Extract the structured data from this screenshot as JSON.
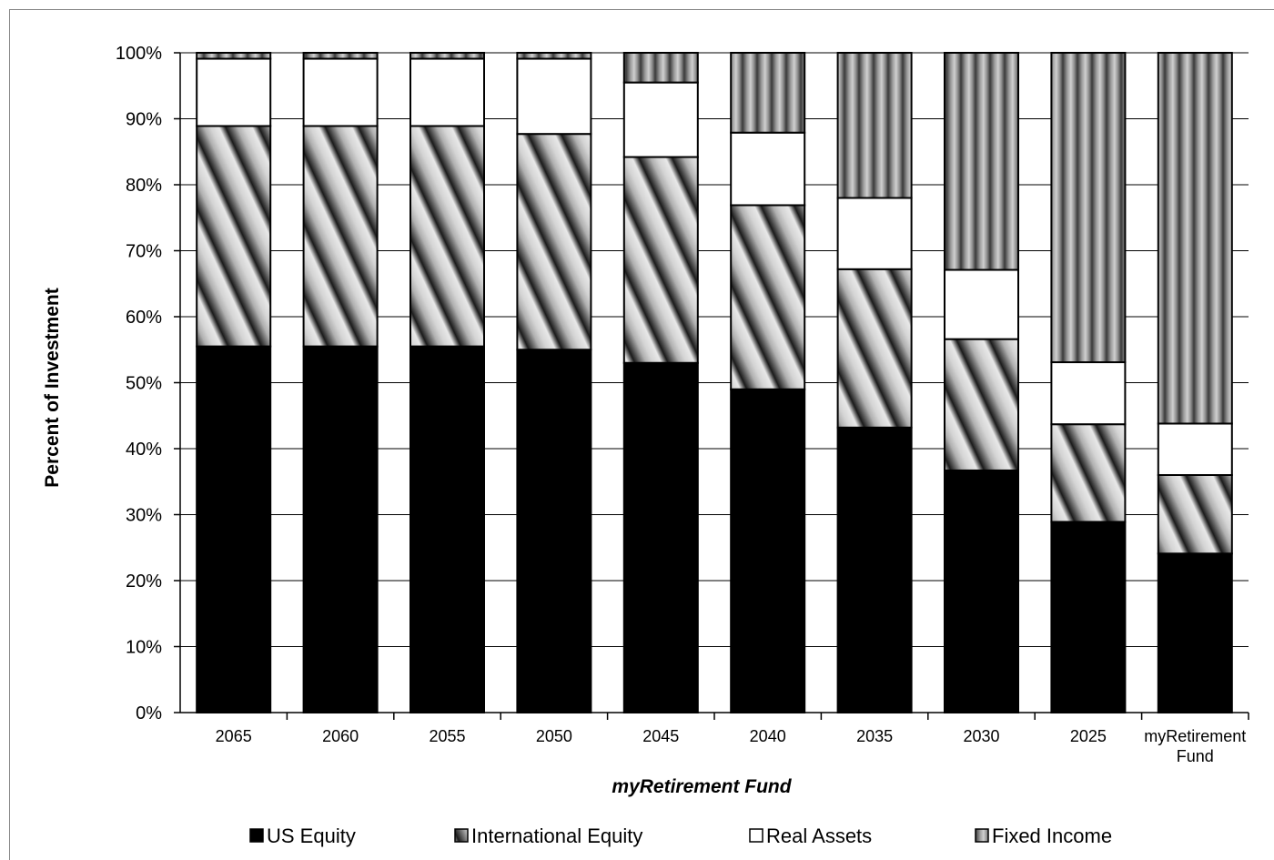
{
  "chart_data": {
    "type": "bar",
    "stacked": true,
    "title": "",
    "xlabel": "myRetirement Fund",
    "ylabel": "Percent of Investment",
    "ylim": [
      0,
      100
    ],
    "y_ticks": [
      "0%",
      "10%",
      "20%",
      "30%",
      "40%",
      "50%",
      "60%",
      "70%",
      "80%",
      "90%",
      "100%"
    ],
    "categories": [
      "2065",
      "2060",
      "2055",
      "2050",
      "2045",
      "2040",
      "2035",
      "2030",
      "2025",
      "myRetirement Fund"
    ],
    "category_lines": [
      [
        "2065"
      ],
      [
        "2060"
      ],
      [
        "2055"
      ],
      [
        "2050"
      ],
      [
        "2045"
      ],
      [
        "2040"
      ],
      [
        "2035"
      ],
      [
        "2030"
      ],
      [
        "2025"
      ],
      [
        "myRetirement",
        "Fund"
      ]
    ],
    "series": [
      {
        "name": "US Equity",
        "fill": "solid-black",
        "values": [
          55.5,
          55.5,
          55.5,
          55.0,
          53.0,
          49.0,
          43.2,
          36.7,
          28.9,
          24.1
        ]
      },
      {
        "name": "International Equity",
        "fill": "diagonal-gradient",
        "values": [
          33.4,
          33.4,
          33.4,
          32.7,
          31.2,
          27.9,
          24.0,
          19.9,
          14.8,
          11.9
        ]
      },
      {
        "name": "Real Assets",
        "fill": "white",
        "values": [
          10.2,
          10.2,
          10.2,
          11.4,
          11.3,
          11.0,
          10.8,
          10.5,
          9.4,
          7.8
        ]
      },
      {
        "name": "Fixed Income",
        "fill": "vertical-gradient",
        "values": [
          0.9,
          0.9,
          0.9,
          0.9,
          4.5,
          12.1,
          22.0,
          32.9,
          46.9,
          56.2
        ]
      }
    ],
    "grid": true,
    "legend": "bottom",
    "colors": {
      "us_equity": "#000000",
      "real_assets": "#ffffff",
      "border": "#000000",
      "grid": "#000000"
    }
  }
}
